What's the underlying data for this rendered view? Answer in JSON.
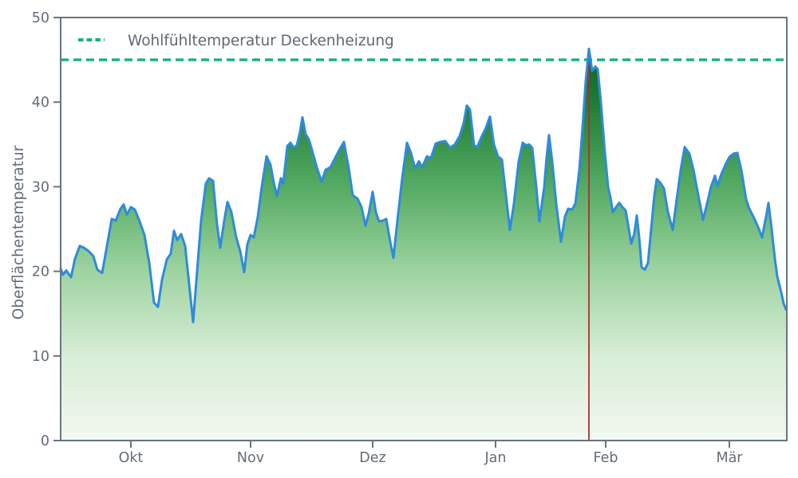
{
  "chart_data": {
    "type": "area",
    "title": "",
    "xlabel": "",
    "ylabel": "Oberflächentemperatur",
    "ylim": [
      0,
      50
    ],
    "yticks": [
      0,
      10,
      20,
      30,
      40,
      50
    ],
    "x_range_days": [
      0,
      182
    ],
    "x_ticks": [
      {
        "label": "Okt",
        "day": 17.6
      },
      {
        "label": "Nov",
        "day": 47.6
      },
      {
        "label": "Dez",
        "day": 78.2
      },
      {
        "label": "Jan",
        "day": 109.0
      },
      {
        "label": "Feb",
        "day": 136.6
      },
      {
        "label": "Mär",
        "day": 167.6
      }
    ],
    "grid": false,
    "legend_position": "upper-left",
    "threshold": {
      "label": "Wohlfühltemperatur Deckenheizung",
      "value": 45,
      "color": "#10b185",
      "style": "dashed"
    },
    "event_marker": {
      "day": 132.4,
      "from_value": 46.0,
      "to_value": 0,
      "color": "#a53230"
    },
    "series": [
      {
        "name": "Oberflächentemperatur",
        "line_color": "#2e8bdb",
        "fill_gradient": [
          [
            0.0,
            "#084f1b"
          ],
          [
            0.2,
            "#1f7c37"
          ],
          [
            0.4,
            "#55ab63"
          ],
          [
            0.6,
            "#9ed3a0"
          ],
          [
            0.8,
            "#d8edd6"
          ],
          [
            1.0,
            "#f2f8f0"
          ]
        ],
        "points": [
          [
            0,
            20.3
          ],
          [
            0.6,
            19.6
          ],
          [
            1.4,
            20.1
          ],
          [
            2.6,
            19.3
          ],
          [
            3.6,
            21.5
          ],
          [
            4.8,
            23.0
          ],
          [
            5.8,
            22.8
          ],
          [
            7,
            22.4
          ],
          [
            8.2,
            21.8
          ],
          [
            9.2,
            20.2
          ],
          [
            10.4,
            19.8
          ],
          [
            11.6,
            23.0
          ],
          [
            12.8,
            26.2
          ],
          [
            13.8,
            26.0
          ],
          [
            15,
            27.4
          ],
          [
            15.8,
            27.9
          ],
          [
            16.6,
            26.7
          ],
          [
            17.6,
            27.6
          ],
          [
            18.6,
            27.3
          ],
          [
            19.8,
            25.9
          ],
          [
            21,
            24.3
          ],
          [
            22.2,
            21.0
          ],
          [
            23.4,
            16.3
          ],
          [
            24.4,
            15.8
          ],
          [
            25.4,
            19.0
          ],
          [
            26.6,
            21.4
          ],
          [
            27.6,
            22.1
          ],
          [
            28.4,
            24.8
          ],
          [
            29.2,
            23.7
          ],
          [
            30.2,
            24.4
          ],
          [
            31.2,
            23.0
          ],
          [
            32.2,
            18.5
          ],
          [
            33.2,
            14.0
          ],
          [
            34.2,
            20.0
          ],
          [
            35.2,
            26.0
          ],
          [
            36.4,
            30.4
          ],
          [
            37.2,
            31.0
          ],
          [
            38.2,
            30.7
          ],
          [
            39.2,
            25.5
          ],
          [
            40,
            22.8
          ],
          [
            41,
            26.0
          ],
          [
            41.8,
            28.2
          ],
          [
            42.8,
            27.0
          ],
          [
            44,
            24.0
          ],
          [
            45,
            22.4
          ],
          [
            46,
            19.9
          ],
          [
            46.8,
            23.2
          ],
          [
            47.6,
            24.3
          ],
          [
            48.4,
            24.0
          ],
          [
            49.4,
            26.4
          ],
          [
            50.4,
            30.0
          ],
          [
            51.6,
            33.6
          ],
          [
            52.6,
            32.6
          ],
          [
            53.4,
            30.5
          ],
          [
            54.2,
            28.9
          ],
          [
            55.2,
            31.0
          ],
          [
            55.8,
            30.4
          ],
          [
            56.8,
            34.8
          ],
          [
            57.6,
            35.2
          ],
          [
            58.4,
            34.6
          ],
          [
            59.2,
            34.9
          ],
          [
            60,
            36.5
          ],
          [
            60.6,
            38.2
          ],
          [
            61.4,
            36.2
          ],
          [
            62.2,
            35.6
          ],
          [
            63.2,
            34.0
          ],
          [
            64.2,
            32.3
          ],
          [
            65.4,
            30.6
          ],
          [
            66.4,
            32.0
          ],
          [
            67.6,
            32.3
          ],
          [
            68.8,
            33.4
          ],
          [
            70,
            34.5
          ],
          [
            71,
            35.3
          ],
          [
            72.2,
            32.2
          ],
          [
            73.2,
            29.0
          ],
          [
            74.4,
            28.6
          ],
          [
            75.4,
            27.6
          ],
          [
            76.4,
            25.4
          ],
          [
            77.2,
            26.8
          ],
          [
            78.2,
            29.4
          ],
          [
            79,
            27.0
          ],
          [
            79.8,
            25.9
          ],
          [
            80.8,
            26.0
          ],
          [
            81.6,
            26.2
          ],
          [
            82.6,
            23.5
          ],
          [
            83.4,
            21.6
          ],
          [
            84.4,
            26.0
          ],
          [
            85.6,
            31.0
          ],
          [
            86.8,
            35.2
          ],
          [
            87.8,
            34.0
          ],
          [
            88.8,
            32.2
          ],
          [
            89.8,
            33.0
          ],
          [
            90.6,
            32.3
          ],
          [
            91.8,
            33.6
          ],
          [
            92.8,
            33.4
          ],
          [
            94,
            35.1
          ],
          [
            95.2,
            35.3
          ],
          [
            96.4,
            35.4
          ],
          [
            97.6,
            34.6
          ],
          [
            98.8,
            35.0
          ],
          [
            100,
            36.0
          ],
          [
            101,
            37.5
          ],
          [
            101.8,
            39.6
          ],
          [
            102.6,
            39.1
          ],
          [
            103.6,
            34.9
          ],
          [
            104.4,
            34.7
          ],
          [
            105.4,
            35.8
          ],
          [
            106.6,
            37.0
          ],
          [
            107.6,
            38.3
          ],
          [
            108.6,
            35.0
          ],
          [
            109.6,
            33.6
          ],
          [
            110.6,
            33.2
          ],
          [
            111.6,
            29.0
          ],
          [
            112.6,
            24.9
          ],
          [
            113.6,
            28.0
          ],
          [
            114.8,
            33.0
          ],
          [
            115.8,
            35.2
          ],
          [
            116.6,
            34.9
          ],
          [
            117.4,
            35.0
          ],
          [
            118.2,
            34.6
          ],
          [
            119.2,
            30.0
          ],
          [
            120,
            25.9
          ],
          [
            121.2,
            30.0
          ],
          [
            121.8,
            33.5
          ],
          [
            122.4,
            36.1
          ],
          [
            123.2,
            33.0
          ],
          [
            124.2,
            28.0
          ],
          [
            125.4,
            23.5
          ],
          [
            126.4,
            26.5
          ],
          [
            127.2,
            27.4
          ],
          [
            128.2,
            27.3
          ],
          [
            129,
            28.0
          ],
          [
            130,
            32.0
          ],
          [
            130.8,
            37.0
          ],
          [
            131.6,
            42.5
          ],
          [
            132.4,
            46.3
          ],
          [
            133.2,
            43.7
          ],
          [
            134,
            44.2
          ],
          [
            134.6,
            43.9
          ],
          [
            135.4,
            40.0
          ],
          [
            136.4,
            34.0
          ],
          [
            137.2,
            30.0
          ],
          [
            137.8,
            28.7
          ],
          [
            138.4,
            27.0
          ],
          [
            139.2,
            27.6
          ],
          [
            140,
            28.1
          ],
          [
            140.8,
            27.6
          ],
          [
            141.6,
            27.2
          ],
          [
            142.4,
            25.0
          ],
          [
            143,
            23.3
          ],
          [
            143.8,
            24.5
          ],
          [
            144.4,
            26.6
          ],
          [
            145,
            24.0
          ],
          [
            145.6,
            20.5
          ],
          [
            146.4,
            20.2
          ],
          [
            147.2,
            21.0
          ],
          [
            148,
            25.0
          ],
          [
            148.8,
            29.0
          ],
          [
            149.4,
            30.9
          ],
          [
            150.4,
            30.4
          ],
          [
            151.2,
            29.8
          ],
          [
            152.2,
            27.0
          ],
          [
            153.4,
            24.9
          ],
          [
            154.4,
            28.5
          ],
          [
            155.4,
            32.0
          ],
          [
            156.4,
            34.7
          ],
          [
            157,
            34.3
          ],
          [
            157.6,
            33.9
          ],
          [
            158.6,
            32.0
          ],
          [
            159.8,
            29.0
          ],
          [
            161,
            26.1
          ],
          [
            162,
            28.0
          ],
          [
            163,
            30.0
          ],
          [
            164,
            31.3
          ],
          [
            164.6,
            30.1
          ],
          [
            165.6,
            31.5
          ],
          [
            166.6,
            32.6
          ],
          [
            167.6,
            33.5
          ],
          [
            168.6,
            33.9
          ],
          [
            169.6,
            34.0
          ],
          [
            170.6,
            32.0
          ],
          [
            171.8,
            28.5
          ],
          [
            172.6,
            27.4
          ],
          [
            173.8,
            26.3
          ],
          [
            175,
            25.0
          ],
          [
            175.8,
            24.0
          ],
          [
            177,
            27.0
          ],
          [
            177.4,
            28.1
          ],
          [
            178.2,
            25.0
          ],
          [
            179,
            21.5
          ],
          [
            179.6,
            19.4
          ],
          [
            180.6,
            17.5
          ],
          [
            181.2,
            16.2
          ],
          [
            181.8,
            15.5
          ]
        ]
      }
    ],
    "axis_color": "#6a7480",
    "tick_text_color": "#636d78"
  }
}
